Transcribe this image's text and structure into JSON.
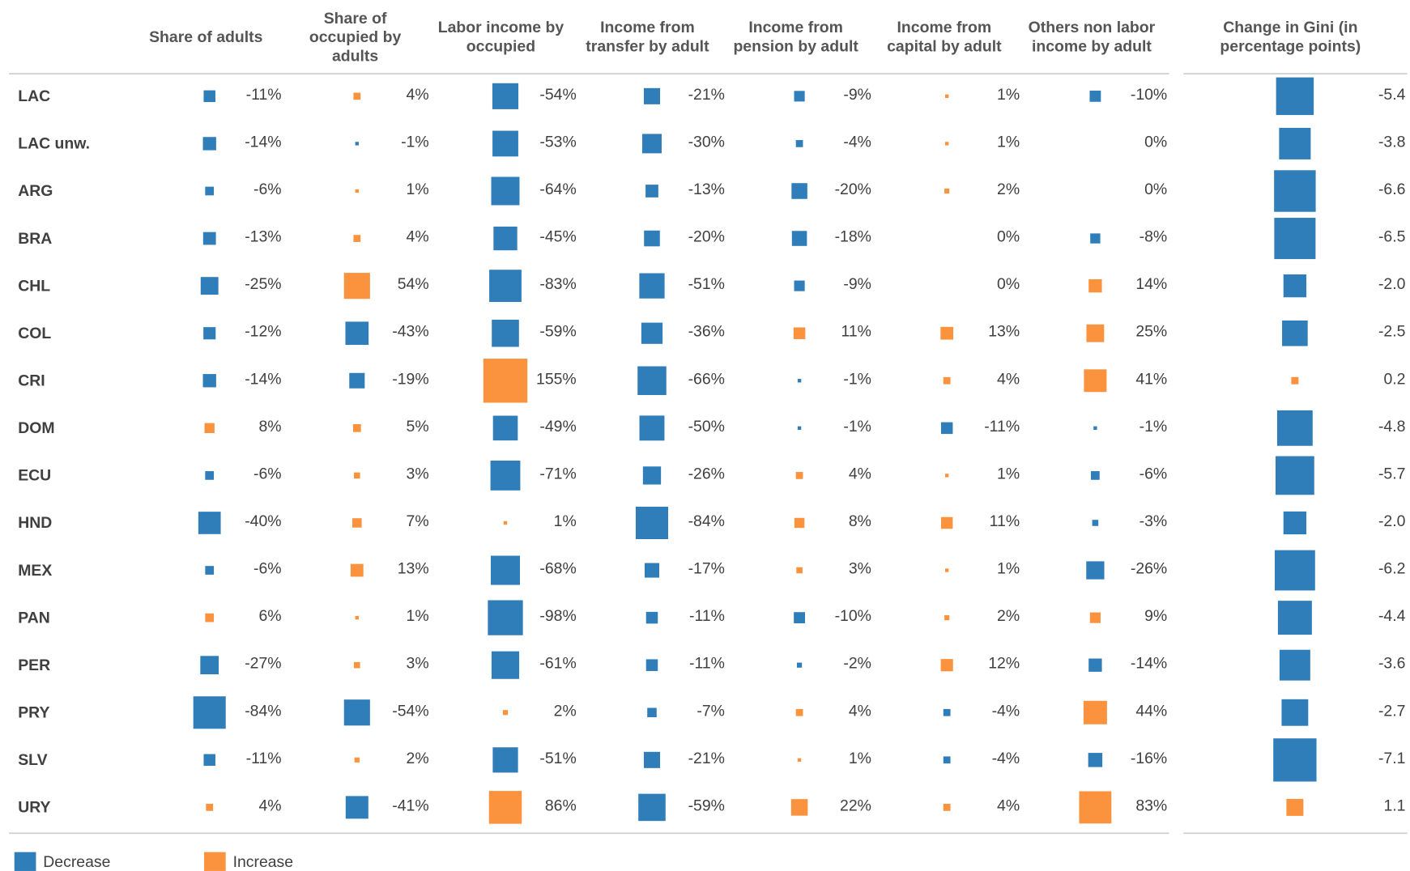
{
  "chart_data": {
    "type": "square-table",
    "categories": [
      "LAC",
      "LAC unw.",
      "ARG",
      "BRA",
      "CHL",
      "COL",
      "CRI",
      "DOM",
      "ECU",
      "HND",
      "MEX",
      "PAN",
      "PER",
      "PRY",
      "SLV",
      "URY"
    ],
    "legend": [
      {
        "name": "Decrease",
        "color": "#2f7db9"
      },
      {
        "name": "Increase",
        "color": "#fb923e"
      }
    ],
    "panels": [
      {
        "series": [
          {
            "name": "Share of adults",
            "values": [
              -11,
              -14,
              -6,
              -13,
              -25,
              -12,
              -14,
              8,
              -6,
              -40,
              -6,
              6,
              -27,
              -84,
              -11,
              4
            ],
            "value_labels": [
              "-11%",
              "-14%",
              "-6%",
              "-13%",
              "-25%",
              "-12%",
              "-14%",
              "8%",
              "-6%",
              "-40%",
              "-6%",
              "6%",
              "-27%",
              "-84%",
              "-11%",
              "4%"
            ]
          },
          {
            "name": "Share of occupied by adults",
            "values": [
              4,
              -1,
              1,
              4,
              54,
              -43,
              -19,
              5,
              3,
              7,
              13,
              1,
              3,
              -54,
              2,
              -41
            ],
            "value_labels": [
              "4%",
              "-1%",
              "1%",
              "4%",
              "54%",
              "-43%",
              "-19%",
              "5%",
              "3%",
              "7%",
              "13%",
              "1%",
              "3%",
              "-54%",
              "2%",
              "-41%"
            ]
          },
          {
            "name": "Labor income by occupied",
            "values": [
              -54,
              -53,
              -64,
              -45,
              -83,
              -59,
              155,
              -49,
              -71,
              1,
              -68,
              -98,
              -61,
              2,
              -51,
              86
            ],
            "value_labels": [
              "-54%",
              "-53%",
              "-64%",
              "-45%",
              "-83%",
              "-59%",
              "155%",
              "-49%",
              "-71%",
              "1%",
              "-68%",
              "-98%",
              "-61%",
              "2%",
              "-51%",
              "86%"
            ]
          },
          {
            "name": "Income from transfer by adult",
            "values": [
              -21,
              -30,
              -13,
              -20,
              -51,
              -36,
              -66,
              -50,
              -26,
              -84,
              -17,
              -11,
              -11,
              -7,
              -21,
              -59
            ],
            "value_labels": [
              "-21%",
              "-30%",
              "-13%",
              "-20%",
              "-51%",
              "-36%",
              "-66%",
              "-50%",
              "-26%",
              "-84%",
              "-17%",
              "-11%",
              "-11%",
              "-7%",
              "-21%",
              "-59%"
            ]
          },
          {
            "name": "Income from pension by adult",
            "values": [
              -9,
              -4,
              -20,
              -18,
              -9,
              11,
              -1,
              -1,
              4,
              8,
              3,
              -10,
              -2,
              4,
              1,
              22
            ],
            "value_labels": [
              "-9%",
              "-4%",
              "-20%",
              "-18%",
              "-9%",
              "11%",
              "-1%",
              "-1%",
              "4%",
              "8%",
              "3%",
              "-10%",
              "-2%",
              "4%",
              "1%",
              "22%"
            ]
          },
          {
            "name": "Income from capital by adult",
            "values": [
              1,
              1,
              2,
              0,
              0,
              13,
              4,
              -11,
              1,
              11,
              1,
              2,
              12,
              -4,
              -4,
              4
            ],
            "value_labels": [
              "1%",
              "1%",
              "2%",
              "0%",
              "0%",
              "13%",
              "4%",
              "-11%",
              "1%",
              "11%",
              "1%",
              "2%",
              "12%",
              "-4%",
              "-4%",
              "4%"
            ]
          },
          {
            "name": "Others non labor income by adult",
            "values": [
              -10,
              0,
              0,
              -8,
              14,
              25,
              41,
              -1,
              -6,
              -3,
              -26,
              9,
              -14,
              44,
              -16,
              83
            ],
            "value_labels": [
              "-10%",
              "0%",
              "0%",
              "-8%",
              "14%",
              "25%",
              "41%",
              "-1%",
              "-6%",
              "-3%",
              "-26%",
              "9%",
              "-14%",
              "44%",
              "-16%",
              "83%"
            ]
          }
        ]
      },
      {
        "series": [
          {
            "name": "Change in Gini (in percentage points)",
            "values": [
              -5.4,
              -3.8,
              -6.6,
              -6.5,
              -2.0,
              -2.5,
              0.2,
              -4.8,
              -5.7,
              -2.0,
              -6.2,
              -4.4,
              -3.6,
              -2.7,
              -7.1,
              1.1
            ],
            "value_labels": [
              "-5.4",
              "-3.8",
              "-6.6",
              "-6.5",
              "-2.0",
              "-2.5",
              "0.2",
              "-4.8",
              "-5.7",
              "-2.0",
              "-6.2",
              "-4.4",
              "-3.6",
              "-2.7",
              "-7.1",
              "1.1"
            ]
          }
        ]
      }
    ]
  }
}
